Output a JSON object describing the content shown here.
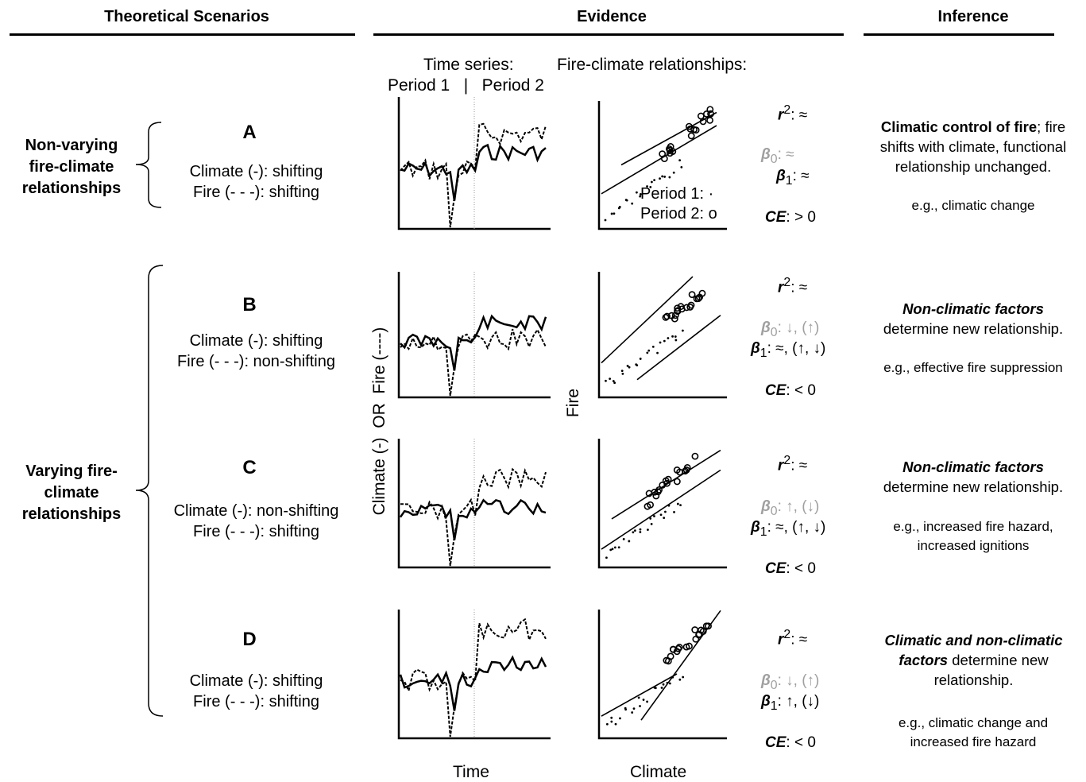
{
  "headers": {
    "scenarios": "Theoretical Scenarios",
    "evidence": "Evidence",
    "inference": "Inference"
  },
  "evidence_subheaders": {
    "time_series": "Time series:",
    "period_split": "Period 1   |   Period 2",
    "relationships": "Fire-climate relationships:"
  },
  "groups": {
    "non_varying": "Non-varying fire-climate relationships",
    "varying": "Varying fire-climate relationships"
  },
  "scenarios": [
    {
      "letter": "A",
      "climate": "Climate (-): shifting",
      "fire": "Fire (- - -): shifting",
      "stats": {
        "r2": ": ≈",
        "b0": ": ≈",
        "b1": ": ≈",
        "ce": ": > 0"
      },
      "inference_bold": "Climatic control of fire",
      "inference_rest": "; fire shifts with climate, functional relationship unchanged.",
      "example": "e.g., climatic change"
    },
    {
      "letter": "B",
      "climate": "Climate (-): shifting",
      "fire": "Fire (- - -): non-shifting",
      "stats": {
        "r2": ": ≈",
        "b0": ": ↓, (↑)",
        "b1": ": ≈, (↑, ↓)",
        "ce": ": < 0"
      },
      "inference_bold": "Non-climatic factors",
      "inference_rest": " determine new relationship.",
      "example": "e.g., effective fire suppression"
    },
    {
      "letter": "C",
      "climate": "Climate (-): non-shifting",
      "fire": "Fire (- - -): shifting",
      "stats": {
        "r2": ": ≈",
        "b0": ": ↑, (↓)",
        "b1": ": ≈, (↑, ↓)",
        "ce": ": < 0"
      },
      "inference_bold": "Non-climatic factors",
      "inference_rest": " determine new relationship.",
      "example": "e.g., increased fire hazard, increased ignitions"
    },
    {
      "letter": "D",
      "climate": "Climate (-): shifting",
      "fire": "Fire (- - -): shifting",
      "stats": {
        "r2": ": ≈",
        "b0": ": ↓, (↑)",
        "b1": ": ↑, (↓)",
        "ce": ": < 0"
      },
      "inference_bold": "Climatic and non-climatic factors",
      "inference_rest": " determine new relationship.",
      "example": "e.g., climatic change and increased fire hazard"
    }
  ],
  "stat_symbols": {
    "r2": "r",
    "r2_sup": "2",
    "b0": "β",
    "b0_sub": "0",
    "b1": "β",
    "b1_sub": "1",
    "ce": "CE"
  },
  "legend": {
    "period1": "Period 1:",
    "period1_marker": "·",
    "period2": "Period 2:",
    "period2_marker": "o"
  },
  "axes": {
    "ts_y": "Climate (-)  OR  Fire (----)",
    "ts_x": "Time",
    "scatter_y": "Fire",
    "scatter_x": "Climate"
  },
  "colors": {
    "ink": "#000000",
    "muted_stat": "#a0a0a0",
    "guide": "#999999"
  }
}
